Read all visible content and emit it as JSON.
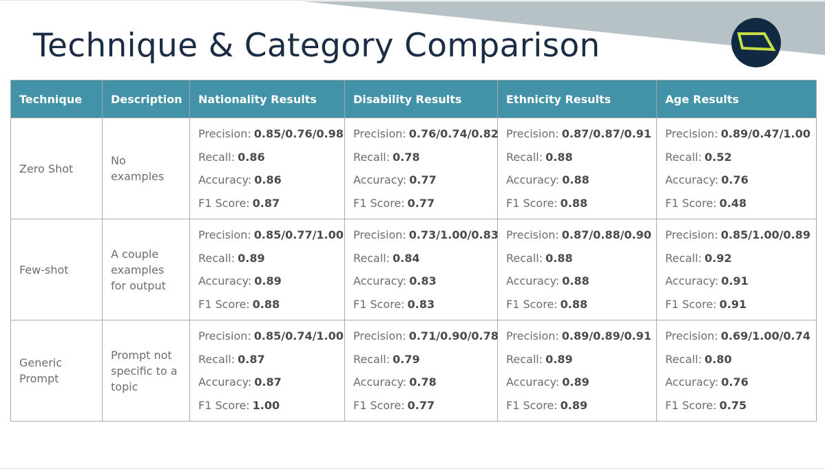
{
  "title": "Technique & Category Comparison",
  "colors": {
    "header_bg": "#4293a7",
    "title": "#1b2d45",
    "band": "#b7c2c7",
    "logo_bg": "#102a43",
    "logo_mark": "#c8de45"
  },
  "logo_icon": "quadrilateral-logo-icon",
  "table": {
    "headers": [
      "Technique",
      "Description",
      "Nationality Results",
      "Disability Results",
      "Ethnicity Results",
      "Age Results"
    ],
    "metric_labels": {
      "precision": "Precision:",
      "recall": "Recall:",
      "accuracy": "Accuracy:",
      "f1": "F1 Score:"
    },
    "rows": [
      {
        "technique": "Zero Shot",
        "description": "No examples",
        "results": [
          {
            "precision": "0.85/0.76/0.98",
            "recall": "0.86",
            "accuracy": "0.86",
            "f1": "0.87"
          },
          {
            "precision": "0.76/0.74/0.82",
            "recall": "0.78",
            "accuracy": "0.77",
            "f1": "0.77"
          },
          {
            "precision": "0.87/0.87/0.91",
            "recall": "0.88",
            "accuracy": "0.88",
            "f1": "0.88"
          },
          {
            "precision": "0.89/0.47/1.00",
            "recall": "0.52",
            "accuracy": "0.76",
            "f1": "0.48"
          }
        ]
      },
      {
        "technique": "Few-shot",
        "description": "A couple examples for output",
        "results": [
          {
            "precision": "0.85/0.77/1.00",
            "recall": "0.89",
            "accuracy": "0.89",
            "f1": "0.88"
          },
          {
            "precision": "0.73/1.00/0.83",
            "recall": "0.84",
            "accuracy": "0.83",
            "f1": "0.83"
          },
          {
            "precision": "0.87/0.88/0.90",
            "recall": "0.88",
            "accuracy": "0.88",
            "f1": "0.88"
          },
          {
            "precision": "0.85/1.00/0.89",
            "recall": "0.92",
            "accuracy": "0.91",
            "f1": "0.91"
          }
        ]
      },
      {
        "technique": "Generic Prompt",
        "description": "Prompt not specific to a topic",
        "results": [
          {
            "precision": "0.85/0.74/1.00",
            "recall": "0.87",
            "accuracy": "0.87",
            "f1": "1.00"
          },
          {
            "precision": "0.71/0.90/0.78",
            "recall": "0.79",
            "accuracy": "0.78",
            "f1": "0.77"
          },
          {
            "precision": "0.89/0.89/0.91",
            "recall": "0.89",
            "accuracy": "0.89",
            "f1": "0.89"
          },
          {
            "precision": "0.69/1.00/0.74",
            "recall": "0.80",
            "accuracy": "0.76",
            "f1": "0.75"
          }
        ]
      }
    ]
  }
}
